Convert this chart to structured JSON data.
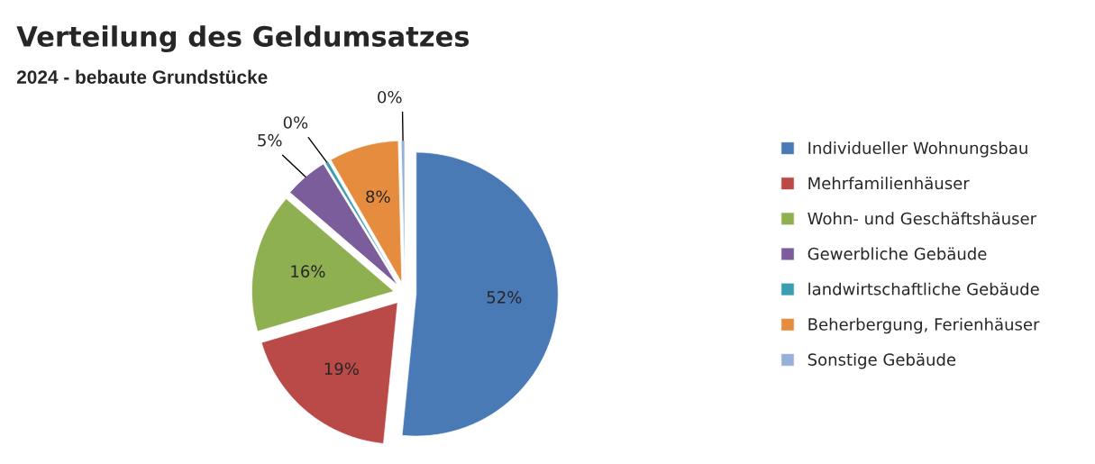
{
  "chart_data": {
    "type": "pie",
    "title": "Verteilung des Geldumsatzes",
    "subtitle": "2024 - bebaute Grundstücke",
    "categories": [
      "Individueller Wohnungsbau",
      "Mehrfamilienhäuser",
      "Wohn- und Geschäftshäuser",
      "Gewerbliche Gebäude",
      "landwirtschaftliche Gebäude",
      "Beherbergung, Ferienhäuser",
      "Sonstige Gebäude"
    ],
    "values": [
      52,
      19,
      16,
      5,
      0.4,
      8,
      0.4
    ],
    "value_labels": [
      "52%",
      "19%",
      "16%",
      "5%",
      "0%",
      "8%",
      "0%"
    ],
    "colors": [
      "#4a7ab5",
      "#b94a48",
      "#8fb050",
      "#7a5d9a",
      "#3a9db0",
      "#e58c3f",
      "#97b0d8"
    ],
    "legend": "right"
  }
}
